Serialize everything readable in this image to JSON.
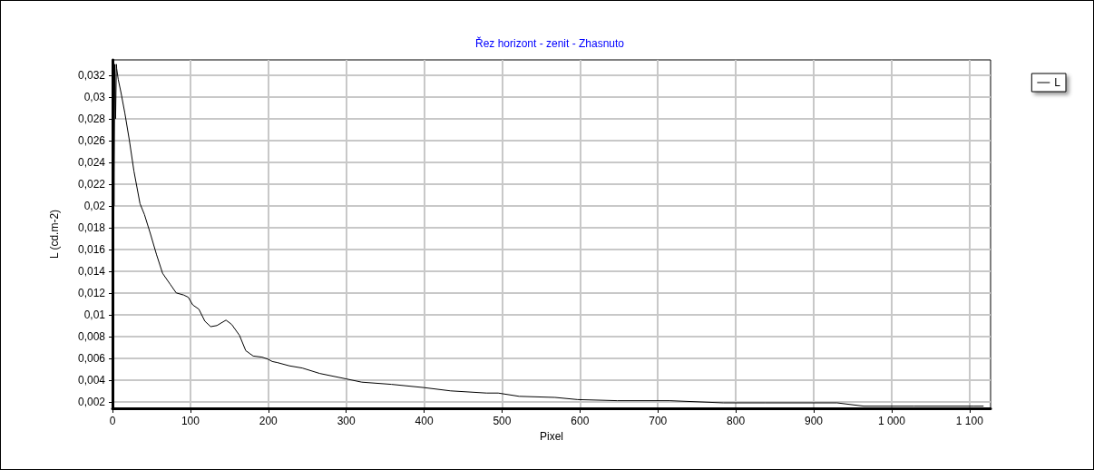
{
  "chart_data": {
    "type": "line",
    "title": "Řez horizont - zenit - Zhasnuto",
    "xlabel": "Pixel",
    "ylabel": "L (cd.m-2)",
    "series": [
      {
        "name": "L",
        "color": "#000000",
        "x": [
          0,
          1,
          2,
          3,
          4,
          5,
          5.4,
          7.4,
          10.9,
          15.9,
          21.7,
          27.5,
          35.3,
          41,
          48.8,
          56.6,
          64.3,
          74,
          81.8,
          91.5,
          97.3,
          103,
          110.9,
          118.6,
          126,
          134,
          145.7,
          153,
          163,
          171,
          180.6,
          192,
          200,
          205,
          211.6,
          227,
          243.5,
          266,
          300,
          320,
          358,
          400,
          434,
          480,
          495,
          522,
          568,
          597,
          648,
          715,
          784,
          838,
          930,
          964,
          1029,
          1105,
          1118
        ],
        "values": [
          0.002,
          0.033,
          0.02,
          0.033,
          0.028,
          0.033,
          0.0326,
          0.0316,
          0.0304,
          0.0285,
          0.026,
          0.0232,
          0.0202,
          0.0192,
          0.0174,
          0.0155,
          0.0138,
          0.0128,
          0.012,
          0.0118,
          0.0116,
          0.0109,
          0.0105,
          0.0094,
          0.0089,
          0.009,
          0.0095,
          0.0091,
          0.0081,
          0.0067,
          0.0062,
          0.0061,
          0.0059,
          0.0057,
          0.0056,
          0.0053,
          0.0051,
          0.0046,
          0.0041,
          0.0038,
          0.0036,
          0.0033,
          0.003,
          0.0028,
          0.0028,
          0.0025,
          0.0024,
          0.0022,
          0.0021,
          0.0021,
          0.0019,
          0.0019,
          0.0019,
          0.0016,
          0.0016,
          0.0016,
          0.0016
        ]
      }
    ],
    "xlim": [
      0,
      1127
    ],
    "xticks": [
      0,
      100,
      200,
      300,
      400,
      500,
      600,
      700,
      800,
      900,
      {
        "value": 1000,
        "label": "1 000"
      },
      {
        "value": 1100,
        "label": "1 100"
      }
    ],
    "ylim": [
      0.0014,
      0.0334
    ],
    "yticks": [
      {
        "value": 0.002,
        "label": "0,002"
      },
      {
        "value": 0.004,
        "label": "0,004"
      },
      {
        "value": 0.006,
        "label": "0,006"
      },
      {
        "value": 0.008,
        "label": "0,008"
      },
      {
        "value": 0.01,
        "label": "0,01"
      },
      {
        "value": 0.012,
        "label": "0,012"
      },
      {
        "value": 0.014,
        "label": "0,014"
      },
      {
        "value": 0.016,
        "label": "0,016"
      },
      {
        "value": 0.018,
        "label": "0,018"
      },
      {
        "value": 0.02,
        "label": "0,02"
      },
      {
        "value": 0.022,
        "label": "0,022"
      },
      {
        "value": 0.024,
        "label": "0,024"
      },
      {
        "value": 0.026,
        "label": "0,026"
      },
      {
        "value": 0.028,
        "label": "0,028"
      },
      {
        "value": 0.03,
        "label": "0,03"
      },
      {
        "value": 0.032,
        "label": "0,032"
      }
    ],
    "grid": true,
    "legend": "top right",
    "marker": "none",
    "line_style": "solid"
  }
}
